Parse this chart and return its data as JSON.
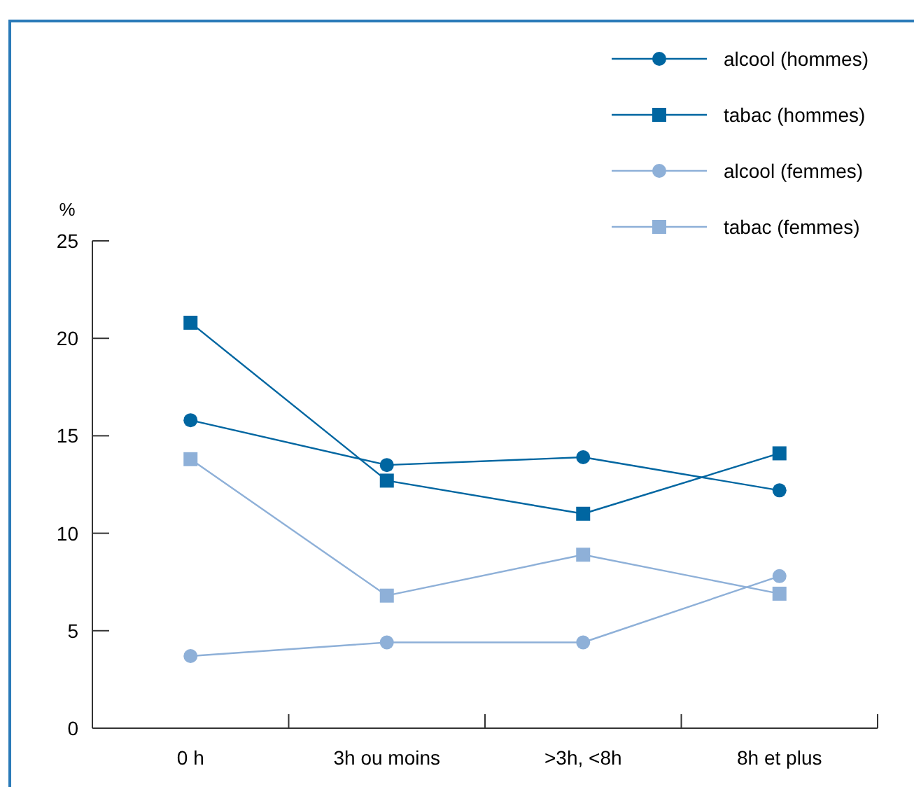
{
  "chart_data": {
    "type": "line",
    "ylabel": "%",
    "categories": [
      "0 h",
      "3h ou moins",
      ">3h, <8h",
      "8h et plus"
    ],
    "series": [
      {
        "name": "alcool (hommes)",
        "color": "#0066a1",
        "marker": "circle",
        "values": [
          15.8,
          13.5,
          13.9,
          12.2
        ]
      },
      {
        "name": "tabac (hommes)",
        "color": "#0066a1",
        "marker": "square",
        "values": [
          20.8,
          12.7,
          11.0,
          14.1
        ]
      },
      {
        "name": "alcool (femmes)",
        "color": "#8eb0d8",
        "marker": "circle",
        "values": [
          3.7,
          4.4,
          4.4,
          7.8
        ]
      },
      {
        "name": "tabac (femmes)",
        "color": "#8eb0d8",
        "marker": "square",
        "values": [
          13.8,
          6.8,
          8.9,
          6.9
        ]
      }
    ],
    "ylim": [
      0,
      25
    ],
    "yticks": [
      0,
      5,
      10,
      15,
      20,
      25
    ],
    "grid": false,
    "legend": "top right"
  }
}
